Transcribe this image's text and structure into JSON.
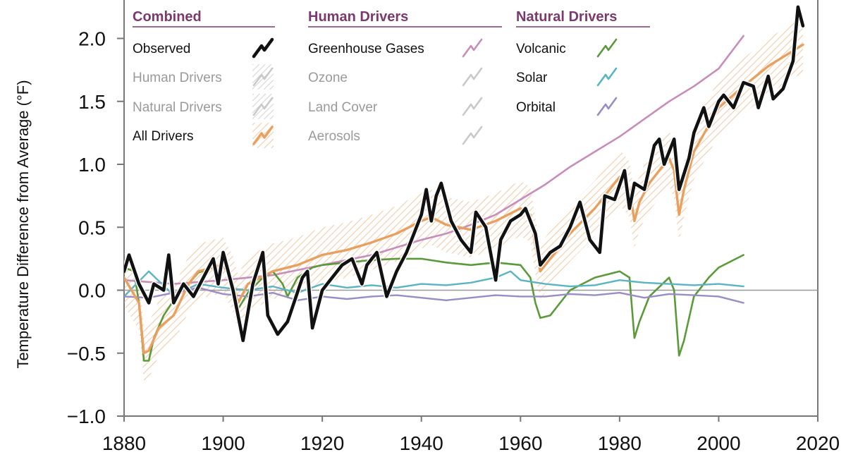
{
  "chart_data": {
    "type": "line",
    "ylabel": "Temperature Difference from Average (°F)",
    "xlim": [
      1880,
      2020
    ],
    "ylim": [
      -1.0,
      2.2
    ],
    "xticks": [
      1880,
      1900,
      1920,
      1940,
      1960,
      1980,
      2000,
      2020
    ],
    "xtick_labels": [
      "1880",
      "1900",
      "1920",
      "1940",
      "1960",
      "1980",
      "2000",
      "2020"
    ],
    "yticks": [
      -1.0,
      -0.5,
      0.0,
      0.5,
      1.0,
      1.5,
      2.0
    ],
    "ytick_labels": [
      "−1.0",
      "−0.5",
      "0.0",
      "0.5",
      "1.0",
      "1.5",
      "2.0"
    ],
    "baseline": 0.0,
    "legend": {
      "groups": [
        {
          "title": "Combined",
          "entries": [
            {
              "key": "observed",
              "label": "Observed",
              "active": true
            },
            {
              "key": "human",
              "label": "Human Drivers",
              "active": false
            },
            {
              "key": "natural",
              "label": "Natural Drivers",
              "active": false
            },
            {
              "key": "all",
              "label": "All Drivers",
              "active": true
            }
          ]
        },
        {
          "title": "Human Drivers",
          "entries": [
            {
              "key": "ghg",
              "label": "Greenhouse Gases",
              "active": true
            },
            {
              "key": "ozone",
              "label": "Ozone",
              "active": false
            },
            {
              "key": "landcover",
              "label": "Land Cover",
              "active": false
            },
            {
              "key": "aerosols",
              "label": "Aerosols",
              "active": false
            }
          ]
        },
        {
          "title": "Natural Drivers",
          "entries": [
            {
              "key": "volcanic",
              "label": "Volcanic",
              "active": true
            },
            {
              "key": "solar",
              "label": "Solar",
              "active": true
            },
            {
              "key": "orbital",
              "label": "Orbital",
              "active": true
            }
          ]
        }
      ]
    },
    "colors": {
      "observed": "#111111",
      "all": "#e8a060",
      "ghg": "#c78dbb",
      "volcanic": "#5a9a3a",
      "solar": "#5ab4c4",
      "orbital": "#9a8cc4",
      "inactive": "#c9c9c9",
      "header": "#7a3a6e"
    },
    "series": [
      {
        "key": "ghg",
        "name": "Greenhouse Gases",
        "x": [
          1880,
          1890,
          1900,
          1910,
          1920,
          1930,
          1940,
          1945,
          1950,
          1955,
          1960,
          1965,
          1970,
          1975,
          1980,
          1985,
          1990,
          1995,
          2000,
          2005
        ],
        "values": [
          0.08,
          0.05,
          0.08,
          0.12,
          0.2,
          0.28,
          0.4,
          0.45,
          0.52,
          0.6,
          0.72,
          0.84,
          0.98,
          1.1,
          1.22,
          1.36,
          1.5,
          1.62,
          1.76,
          2.02
        ]
      },
      {
        "key": "volcanic",
        "name": "Volcanic",
        "x": [
          1880,
          1882,
          1883,
          1884,
          1885,
          1886,
          1888,
          1890,
          1893,
          1895,
          1898,
          1900,
          1902,
          1903,
          1905,
          1908,
          1910,
          1912,
          1913,
          1915,
          1918,
          1920,
          1925,
          1930,
          1935,
          1940,
          1945,
          1950,
          1955,
          1960,
          1962,
          1963,
          1964,
          1966,
          1970,
          1975,
          1980,
          1982,
          1983,
          1984,
          1986,
          1990,
          1991,
          1992,
          1993,
          1995,
          1998,
          2000,
          2005
        ],
        "values": [
          0.18,
          0.15,
          -0.1,
          -0.56,
          -0.56,
          -0.38,
          -0.2,
          -0.08,
          0.05,
          0.14,
          0.18,
          0.2,
          0.05,
          -0.15,
          -0.02,
          0.1,
          0.15,
          0.05,
          -0.05,
          0.1,
          0.18,
          0.2,
          0.22,
          0.24,
          0.25,
          0.25,
          0.22,
          0.2,
          0.22,
          0.2,
          0.1,
          -0.1,
          -0.22,
          -0.2,
          0.0,
          0.1,
          0.15,
          0.1,
          -0.38,
          -0.25,
          -0.05,
          0.1,
          0.0,
          -0.52,
          -0.4,
          -0.05,
          0.1,
          0.18,
          0.28
        ]
      },
      {
        "key": "solar",
        "name": "Solar",
        "x": [
          1880,
          1885,
          1890,
          1895,
          1900,
          1905,
          1910,
          1915,
          1920,
          1925,
          1930,
          1935,
          1940,
          1945,
          1950,
          1955,
          1958,
          1960,
          1965,
          1970,
          1975,
          1980,
          1985,
          1990,
          1995,
          2000,
          2005
        ],
        "values": [
          -0.05,
          0.15,
          -0.04,
          0.05,
          0.02,
          0.0,
          0.03,
          -0.02,
          0.05,
          0.02,
          0.04,
          0.02,
          0.05,
          0.04,
          0.06,
          0.1,
          0.15,
          0.08,
          0.05,
          0.03,
          0.04,
          0.08,
          0.06,
          0.05,
          0.04,
          0.05,
          0.03
        ]
      },
      {
        "key": "orbital",
        "name": "Orbital",
        "x": [
          1880,
          1885,
          1890,
          1895,
          1900,
          1905,
          1910,
          1915,
          1920,
          1925,
          1930,
          1935,
          1940,
          1945,
          1950,
          1955,
          1960,
          1965,
          1970,
          1975,
          1980,
          1985,
          1990,
          1995,
          2000,
          2005
        ],
        "values": [
          -0.05,
          -0.06,
          -0.02,
          0.02,
          -0.03,
          -0.05,
          -0.02,
          -0.08,
          -0.05,
          -0.07,
          -0.05,
          -0.04,
          -0.06,
          -0.08,
          -0.06,
          -0.04,
          -0.05,
          -0.05,
          -0.03,
          -0.04,
          -0.02,
          -0.06,
          -0.03,
          -0.04,
          -0.05,
          -0.1
        ]
      },
      {
        "key": "all",
        "name": "All Drivers",
        "x": [
          1880,
          1883,
          1884,
          1885,
          1887,
          1890,
          1893,
          1895,
          1900,
          1902,
          1903,
          1905,
          1910,
          1915,
          1920,
          1925,
          1930,
          1935,
          1940,
          1942,
          1945,
          1950,
          1955,
          1960,
          1962,
          1963,
          1964,
          1966,
          1970,
          1975,
          1980,
          1982,
          1983,
          1984,
          1986,
          1990,
          1991,
          1992,
          1993,
          1995,
          2000,
          2005,
          2010,
          2017
        ],
        "values": [
          0.1,
          -0.1,
          -0.5,
          -0.48,
          -0.3,
          -0.2,
          0.05,
          0.15,
          0.2,
          0.05,
          -0.1,
          0.05,
          0.15,
          0.2,
          0.28,
          0.32,
          0.38,
          0.45,
          0.55,
          0.58,
          0.52,
          0.48,
          0.55,
          0.65,
          0.6,
          0.35,
          0.15,
          0.25,
          0.45,
          0.65,
          0.9,
          0.8,
          0.55,
          0.7,
          0.85,
          1.05,
          0.95,
          0.6,
          0.8,
          1.1,
          1.45,
          1.62,
          1.78,
          1.95
        ]
      },
      {
        "key": "observed",
        "name": "Observed",
        "x": [
          1880,
          1881,
          1883,
          1885,
          1886,
          1888,
          1889,
          1890,
          1892,
          1894,
          1896,
          1898,
          1899,
          1900,
          1902,
          1904,
          1906,
          1908,
          1909,
          1911,
          1913,
          1916,
          1917,
          1918,
          1920,
          1922,
          1924,
          1926,
          1928,
          1929,
          1931,
          1933,
          1935,
          1937,
          1938,
          1940,
          1941,
          1942,
          1943,
          1944,
          1946,
          1948,
          1950,
          1951,
          1953,
          1955,
          1956,
          1958,
          1960,
          1961,
          1963,
          1964,
          1966,
          1968,
          1970,
          1972,
          1974,
          1976,
          1977,
          1979,
          1981,
          1982,
          1983,
          1985,
          1987,
          1988,
          1989,
          1991,
          1992,
          1994,
          1995,
          1997,
          1998,
          2000,
          2001,
          2003,
          2005,
          2007,
          2008,
          2010,
          2011,
          2013,
          2015,
          2016,
          2017
        ],
        "values": [
          0.15,
          0.28,
          0.05,
          -0.1,
          0.05,
          0.0,
          0.28,
          -0.1,
          0.05,
          -0.05,
          0.1,
          0.25,
          0.05,
          0.3,
          0.0,
          -0.4,
          0.05,
          0.3,
          -0.2,
          -0.35,
          -0.25,
          0.1,
          0.15,
          -0.3,
          0.0,
          0.1,
          0.2,
          0.25,
          0.05,
          0.2,
          0.3,
          -0.05,
          0.15,
          0.3,
          0.4,
          0.6,
          0.8,
          0.55,
          0.75,
          0.85,
          0.55,
          0.4,
          0.3,
          0.62,
          0.5,
          0.08,
          0.4,
          0.55,
          0.6,
          0.65,
          0.45,
          0.2,
          0.3,
          0.35,
          0.5,
          0.7,
          0.4,
          0.3,
          0.75,
          0.72,
          0.95,
          0.65,
          0.85,
          0.8,
          1.15,
          1.2,
          1.0,
          1.2,
          0.8,
          1.05,
          1.25,
          1.45,
          1.3,
          1.5,
          1.55,
          1.45,
          1.65,
          1.62,
          1.45,
          1.7,
          1.52,
          1.6,
          1.82,
          2.25,
          2.1
        ]
      }
    ]
  }
}
